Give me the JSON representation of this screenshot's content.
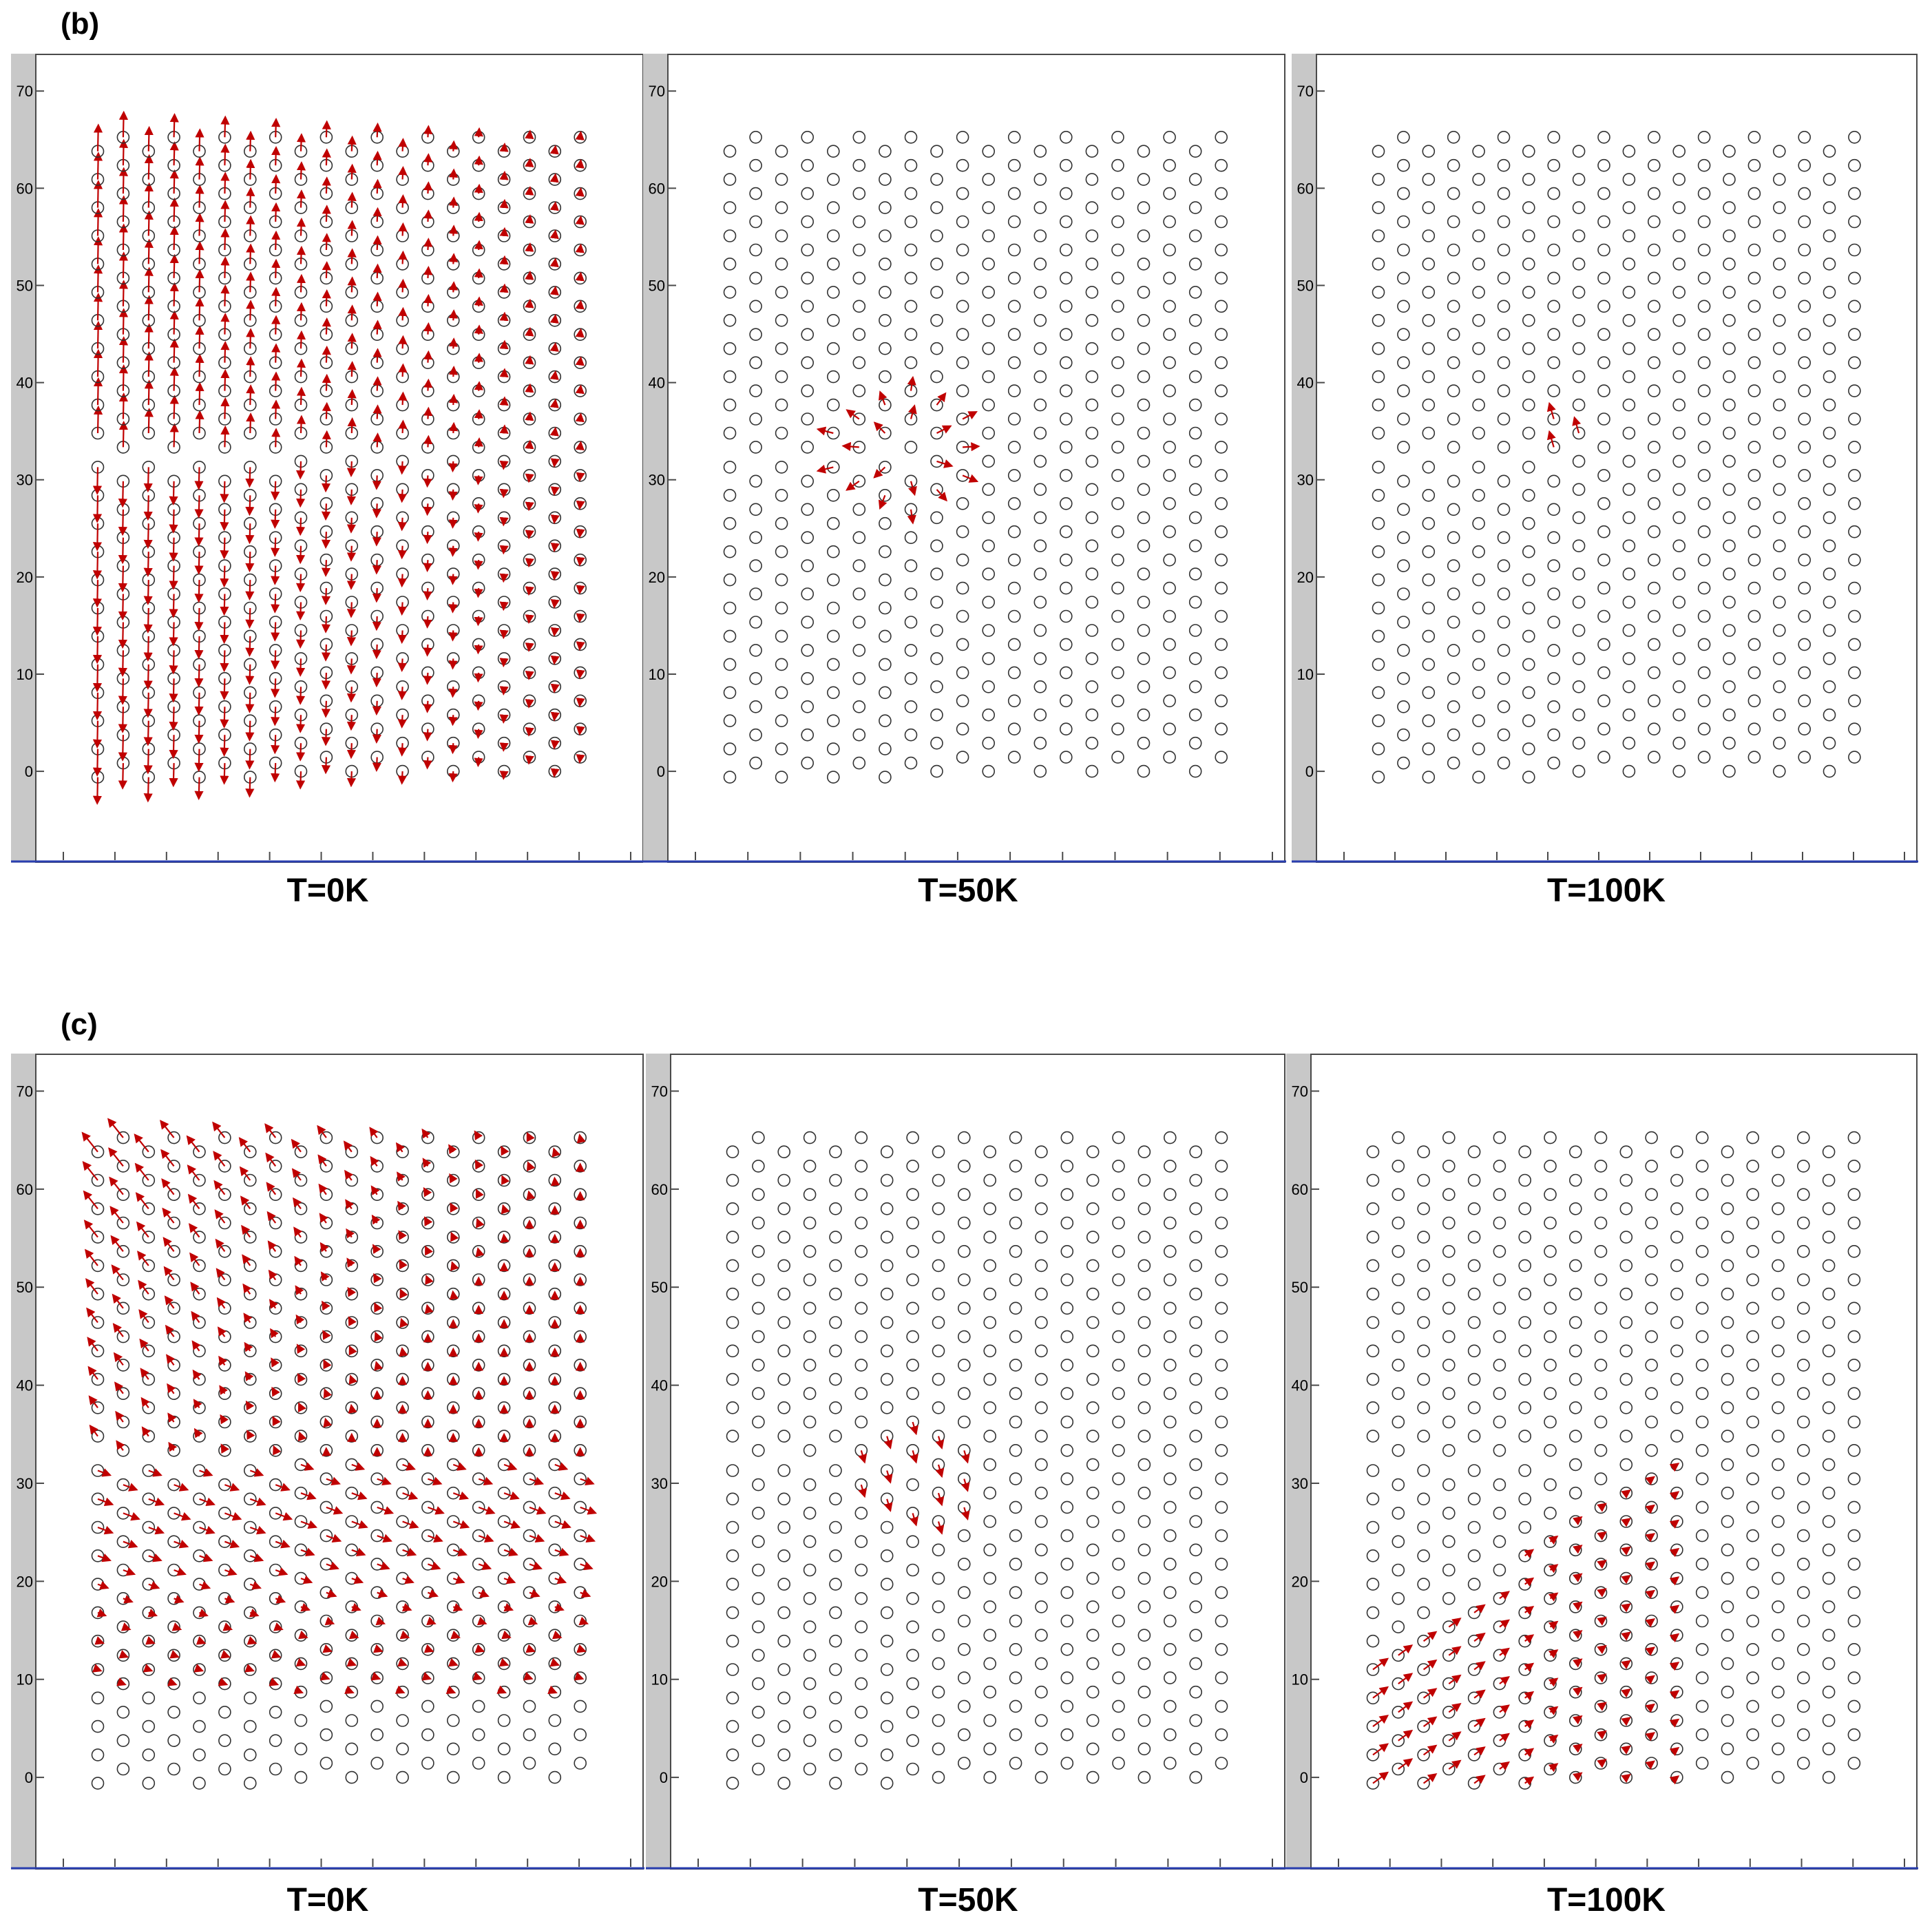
{
  "colors": {
    "frame": "#4a4a4a",
    "gutter": "#c8c8c8",
    "atom": "#333333",
    "arrow": "#c00000",
    "baseline": "#2a3fb0"
  },
  "figure": {
    "rows": [
      {
        "label": "(b)",
        "captions": [
          "T=0K",
          "T=50K",
          "T=100K"
        ]
      },
      {
        "label": "(c)",
        "captions": [
          "T=0K",
          "T=50K",
          "T=100K"
        ]
      }
    ]
  },
  "chart_data": [
    {
      "id": "b-0K",
      "type": "scatter",
      "title": "T=0K",
      "ylim": [
        -8,
        72
      ],
      "yticks": [
        0,
        10,
        20,
        30,
        40,
        50,
        60,
        70
      ],
      "xlabel": "",
      "ylabel": "",
      "content": "lattice atom positions (circles) with displacement vectors (red arrows)",
      "field": "b0"
    },
    {
      "id": "b-50K",
      "type": "scatter",
      "title": "T=50K",
      "ylim": [
        -8,
        72
      ],
      "yticks": [
        0,
        10,
        20,
        30,
        40,
        50,
        60,
        70
      ],
      "xlabel": "",
      "ylabel": "",
      "content": "lattice atom positions with small displacements near dislocation core",
      "field": "b50"
    },
    {
      "id": "b-100K",
      "type": "scatter",
      "title": "T=100K",
      "ylim": [
        -8,
        72
      ],
      "yticks": [
        0,
        10,
        20,
        30,
        40,
        50,
        60,
        70
      ],
      "xlabel": "",
      "ylabel": "",
      "content": "lattice atom positions with single displacement near core",
      "field": "b100"
    },
    {
      "id": "c-0K",
      "type": "scatter",
      "title": "T=0K",
      "ylim": [
        -8,
        72
      ],
      "yticks": [
        0,
        10,
        20,
        30,
        40,
        50,
        60,
        70
      ],
      "xlabel": "",
      "ylabel": "",
      "content": "lattice atom positions with diagonal displacement field",
      "field": "c0"
    },
    {
      "id": "c-50K",
      "type": "scatter",
      "title": "T=50K",
      "ylim": [
        -8,
        72
      ],
      "yticks": [
        0,
        10,
        20,
        30,
        40,
        50,
        60,
        70
      ],
      "xlabel": "",
      "ylabel": "",
      "content": "lattice atom positions with displacements near core",
      "field": "c50"
    },
    {
      "id": "c-100K",
      "type": "scatter",
      "title": "T=100K",
      "ylim": [
        -8,
        72
      ],
      "yticks": [
        0,
        10,
        20,
        30,
        40,
        50,
        60,
        70
      ],
      "xlabel": "",
      "ylabel": "",
      "content": "lattice atom positions with lower-left displacement field",
      "field": "c100"
    }
  ],
  "lattice": {
    "columns": 20,
    "x_spacing": 2.25,
    "y_spacing": 2.9,
    "y_offset_odd": 1.45,
    "y_max": 65.5,
    "core_y": 32,
    "core_column": 8
  }
}
